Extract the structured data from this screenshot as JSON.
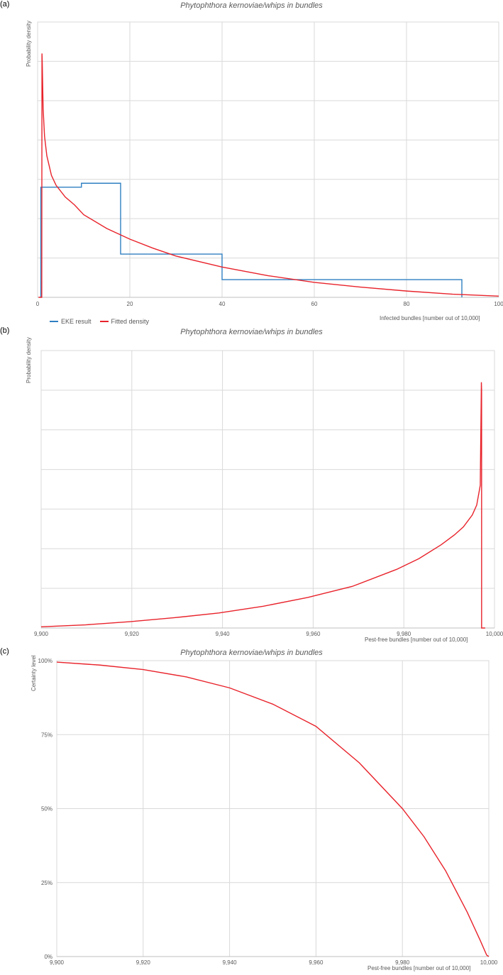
{
  "colors": {
    "eke": "#2f7fc1",
    "fitted": "#e8232b",
    "grid": "#d9d9d9",
    "axis": "#bfbfbf",
    "text": "#595959"
  },
  "chart_data": [
    {
      "panel": "(a)",
      "type": "line",
      "title": "Phytophthora kernoviae/whips in bundles",
      "xlabel": "Infected bundles [number out of 10,000]",
      "ylabel": "Probability density",
      "xlim": [
        0,
        100
      ],
      "xticks": [
        "0",
        "20",
        "40",
        "60",
        "80",
        "100"
      ],
      "legend": {
        "position": "bottom-left",
        "entries": [
          "EKE result",
          "Fitted density"
        ]
      },
      "grid": true,
      "series": [
        {
          "name": "EKE result",
          "type": "step",
          "x": [
            0.7,
            0.7,
            1.0,
            1.0,
            9.5,
            9.5,
            18,
            18,
            40,
            40,
            92,
            92
          ],
          "y": [
            0,
            0.028,
            0.028,
            0.028,
            0.028,
            0.029,
            0.029,
            0.011,
            0.011,
            0.0045,
            0.0045,
            0
          ]
        },
        {
          "name": "Fitted density",
          "type": "line",
          "x": [
            0.2,
            0.9,
            0.95,
            1.0,
            1.2,
            1.5,
            2,
            3,
            4,
            6,
            8,
            10,
            15,
            20,
            25,
            30,
            40,
            50,
            60,
            70,
            80,
            90,
            100
          ],
          "y": [
            0,
            0,
            0.062,
            0.06,
            0.048,
            0.041,
            0.036,
            0.031,
            0.0285,
            0.0255,
            0.0235,
            0.021,
            0.0175,
            0.0148,
            0.0125,
            0.0105,
            0.0077,
            0.0055,
            0.0038,
            0.0026,
            0.0016,
            0.0008,
            0.0003
          ]
        }
      ],
      "ylim": [
        0,
        0.07
      ]
    },
    {
      "panel": "(b)",
      "type": "line",
      "title": "Phytophthora kernoviae/whips in bundles",
      "xlabel": "Pest-free bundles [number out of 10,000]",
      "ylabel": "Probability density",
      "xlim": [
        9900,
        10002
      ],
      "xticks": [
        "9,900",
        "9,920",
        "9,940",
        "9,960",
        "9,980",
        "10,000"
      ],
      "grid": true,
      "series": [
        {
          "name": "Fitted density",
          "x": [
            9900,
            9910,
            9920,
            9930,
            9940,
            9950,
            9960,
            9970,
            9980,
            9985,
            9990,
            9993,
            9995,
            9997,
            9998,
            9998.8,
            9999.05,
            9999.1,
            9999.1,
            9999.9
          ],
          "y": [
            0.0003,
            0.0008,
            0.0016,
            0.0026,
            0.0038,
            0.0055,
            0.0077,
            0.0105,
            0.0148,
            0.0175,
            0.021,
            0.0235,
            0.0255,
            0.0285,
            0.031,
            0.036,
            0.062,
            0.06,
            0,
            0
          ]
        }
      ],
      "ylim": [
        0,
        0.07
      ]
    },
    {
      "panel": "(c)",
      "type": "line",
      "title": "Phytophthora kernoviae/whips in bundles",
      "xlabel": "Pest-free bundles [number out of 10,000]",
      "ylabel": "Certainty level",
      "xlim": [
        9900,
        10000
      ],
      "ylim": [
        0,
        1
      ],
      "xticks": [
        "9,900",
        "9,920",
        "9,940",
        "9,960",
        "9,980",
        "10,000"
      ],
      "yticks": [
        "0%",
        "25%",
        "50%",
        "75%",
        "100%"
      ],
      "grid": true,
      "series": [
        {
          "name": "Fitted density",
          "x": [
            9900,
            9910,
            9920,
            9930,
            9940,
            9950,
            9960,
            9970,
            9980,
            9985,
            9990,
            9995,
            9998,
            9999.5,
            10000
          ],
          "y": [
            0.995,
            0.985,
            0.97,
            0.945,
            0.908,
            0.853,
            0.778,
            0.655,
            0.5,
            0.405,
            0.29,
            0.15,
            0.055,
            0.005,
            0
          ]
        }
      ]
    }
  ]
}
